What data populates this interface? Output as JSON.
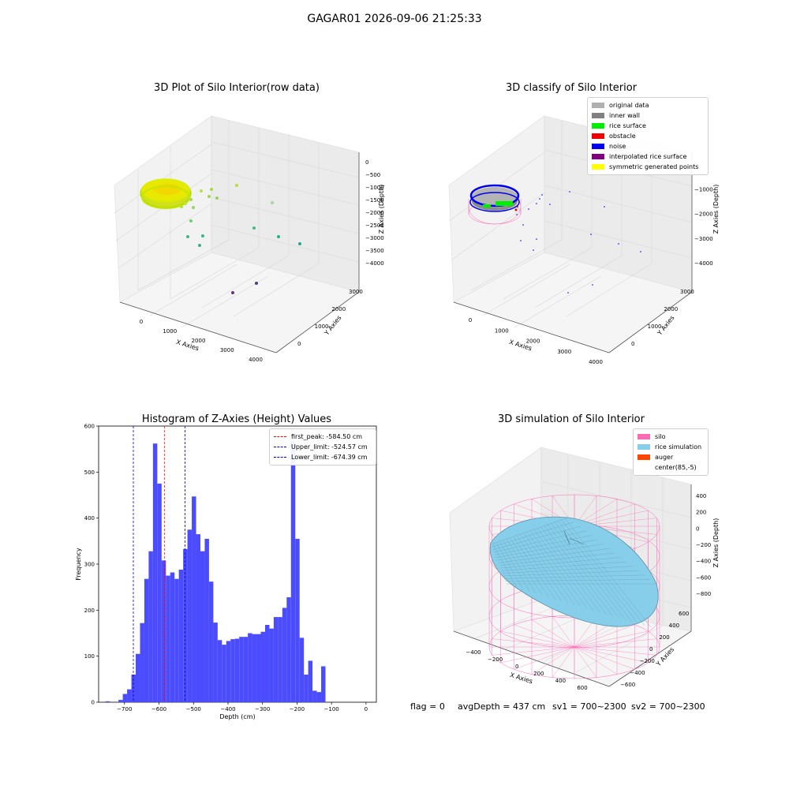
{
  "figure": {
    "suptitle": "GAGAR01 2026-09-06 21:25:33"
  },
  "panels": {
    "raw": {
      "title": "3D Plot of Silo Interior(row data)",
      "xlabel": "X Axies",
      "ylabel": "Y Axies",
      "zlabel": "Z Axies (Depth)",
      "xticks": [
        "0",
        "1000",
        "2000",
        "3000",
        "4000"
      ],
      "yticks": [
        "0",
        "1000",
        "2000",
        "3000"
      ],
      "zticks": [
        "0",
        "−500",
        "−1000",
        "−1500",
        "−2000",
        "−2500",
        "−3000",
        "−3500",
        "−4000"
      ]
    },
    "classify": {
      "title": "3D classify of Silo Interior",
      "xlabel": "X Axies",
      "ylabel": "Y Axies",
      "zlabel": "Z Axies (Depth)",
      "xticks": [
        "0",
        "1000",
        "2000",
        "3000",
        "4000"
      ],
      "yticks": [
        "0",
        "1000",
        "2000",
        "3000"
      ],
      "zticks": [
        "0",
        "−1000",
        "−2000",
        "−3000",
        "−4000"
      ],
      "legend": [
        {
          "label": "original data",
          "color": "#b0b0b0"
        },
        {
          "label": "inner wall",
          "color": "#808080"
        },
        {
          "label": "rice surface",
          "color": "#00ee00"
        },
        {
          "label": "obstacle",
          "color": "#ee0000"
        },
        {
          "label": "noise",
          "color": "#0000ee"
        },
        {
          "label": "interpolated rice surface",
          "color": "#800080"
        },
        {
          "label": "symmetric generated points",
          "color": "#ffff00"
        }
      ]
    },
    "histogram": {
      "title": "Histogram of Z-Axies (Height) Values",
      "xlabel": "Depth (cm)",
      "ylabel": "Frequency",
      "xticks": [
        "−700",
        "−600",
        "−500",
        "−400",
        "−300",
        "−200",
        "−100",
        "0"
      ],
      "yticks": [
        "0",
        "100",
        "200",
        "300",
        "400",
        "500",
        "600"
      ],
      "legend": [
        {
          "label": "first_peak: -584.50 cm",
          "color": "#ff0000"
        },
        {
          "label": "Upper_limit: -524.57 cm",
          "color": "#0000cc"
        },
        {
          "label": "Lower_limit: -674.39 cm",
          "color": "#0000cc"
        }
      ]
    },
    "simulation": {
      "title": "3D simulation of Silo Interior",
      "xlabel": "X Axies",
      "ylabel": "Y Axies",
      "zlabel": "Z Axies (Depth)",
      "xticks": [
        "−400",
        "−200",
        "0",
        "200",
        "400",
        "600"
      ],
      "yticks": [
        "−600",
        "−400",
        "−200",
        "0",
        "200",
        "400",
        "600"
      ],
      "zticks": [
        "400",
        "200",
        "0",
        "−200",
        "−400",
        "−600",
        "−800"
      ],
      "legend": [
        {
          "label": "silo",
          "color": "#ff69b4"
        },
        {
          "label": "rice simulation",
          "color": "#87ceeb"
        },
        {
          "label": "auger",
          "color": "#ff4500"
        },
        {
          "label": "center(85,-5)",
          "color": "#ffffff"
        }
      ]
    }
  },
  "status": {
    "flag": "flag = 0",
    "avg_depth": "avgDepth = 437 cm",
    "sv1": "sv1 = 700~2300",
    "sv2": "sv2 = 700~2300"
  },
  "colors": {
    "bar": "#4c4cff",
    "silo_mesh": "#ff69b4",
    "rice_surface": "#87ceeb"
  },
  "chart_data": [
    {
      "type": "histogram",
      "title": "Histogram of Z-Axies (Height) Values",
      "xlabel": "Depth (cm)",
      "ylabel": "Frequency",
      "xlim": [
        -775,
        30
      ],
      "ylim": [
        0,
        600
      ],
      "bin_start": -755,
      "bin_width": 12.5,
      "counts": [
        2,
        0,
        0,
        5,
        18,
        28,
        60,
        105,
        172,
        268,
        328,
        562,
        475,
        308,
        275,
        282,
        268,
        288,
        333,
        375,
        447,
        365,
        328,
        355,
        262,
        173,
        135,
        125,
        133,
        137,
        138,
        142,
        142,
        150,
        148,
        148,
        153,
        168,
        160,
        185,
        185,
        205,
        228,
        568,
        355,
        140,
        60,
        90,
        25,
        22,
        78
      ],
      "vlines": [
        {
          "label": "first_peak: -584.50 cm",
          "x": -584.5,
          "color": "#ff0000"
        },
        {
          "label": "Upper_limit: -524.57 cm",
          "x": -524.57,
          "color": "#0000cc"
        },
        {
          "label": "Lower_limit: -674.39 cm",
          "x": -674.39,
          "color": "#0000cc"
        }
      ],
      "legend_position": "top-right"
    },
    {
      "type": "scatter",
      "title": "3D Plot of Silo Interior(row data)",
      "xlabel": "X Axies",
      "ylabel": "Y Axies",
      "zlabel": "Z Axies (Depth)",
      "xlim": [
        0,
        4000
      ],
      "ylim": [
        0,
        3000
      ],
      "zlim": [
        -4000,
        0
      ]
    },
    {
      "type": "scatter",
      "title": "3D classify of Silo Interior",
      "xlabel": "X Axies",
      "ylabel": "Y Axies",
      "zlabel": "Z Axies (Depth)",
      "xlim": [
        0,
        4000
      ],
      "ylim": [
        0,
        3000
      ],
      "zlim": [
        -4000,
        0
      ],
      "legend_position": "top-right"
    },
    {
      "type": "area",
      "title": "3D simulation of Silo Interior",
      "xlabel": "X Axies",
      "ylabel": "Y Axies",
      "zlabel": "Z Axies (Depth)",
      "xlim": [
        -400,
        600
      ],
      "ylim": [
        -600,
        600
      ],
      "zlim": [
        -800,
        400
      ],
      "legend_position": "top-right"
    }
  ]
}
